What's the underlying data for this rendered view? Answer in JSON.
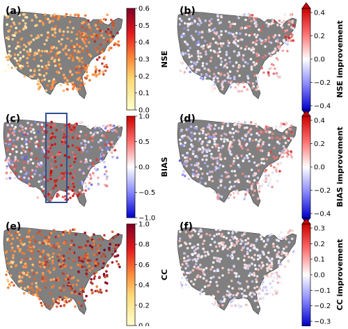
{
  "figure": {
    "panels": [
      {
        "id": "a",
        "label": "(a)",
        "colorbar": {
          "title": "NSE",
          "ticks": [
            "0.6",
            "0.5",
            "0.4",
            "0.3",
            "0.2",
            "0.1",
            "0.0"
          ],
          "scheme": "sequential-yellow-red",
          "extend": false
        }
      },
      {
        "id": "b",
        "label": "(b)",
        "colorbar": {
          "title": "NSE improvement",
          "ticks": [
            "0.4",
            "0.2",
            "0.0",
            "−0.2",
            "−0.4"
          ],
          "scheme": "diverging-blue-red",
          "extend": true
        }
      },
      {
        "id": "c",
        "label": "(c)",
        "colorbar": {
          "title": "BIAS",
          "ticks": [
            "1.0",
            "0.5",
            "0.0",
            "−0.5",
            "−1.0"
          ],
          "scheme": "diverging-blue-red",
          "extend": false
        },
        "highlight_box": true
      },
      {
        "id": "d",
        "label": "(d)",
        "colorbar": {
          "title": "BIAS improvement",
          "ticks": [
            "0.4",
            "0.2",
            "0.0",
            "−0.2",
            "−0.4"
          ],
          "scheme": "diverging-blue-red",
          "extend": true
        }
      },
      {
        "id": "e",
        "label": "(e)",
        "colorbar": {
          "title": "CC",
          "ticks": [
            "1.0",
            "0.8",
            "0.6",
            "0.4",
            "0.2",
            "0.0"
          ],
          "scheme": "sequential-yellow-red",
          "extend": false
        }
      },
      {
        "id": "f",
        "label": "(f)",
        "colorbar": {
          "title": "CC improvement",
          "ticks": [
            "0.3",
            "0.2",
            "0.1",
            "0.0",
            "−0.1",
            "−0.2",
            "−0.3"
          ],
          "scheme": "diverging-blue-red",
          "extend": true
        }
      }
    ],
    "colors": {
      "land": "#808080",
      "highlight_box": "#2f4f8f",
      "seq_low": "#ffffcc",
      "seq_mid": "#fd8d3c",
      "seq_high": "#800026",
      "div_neg": "#0000cc",
      "div_zero": "#ffffff",
      "div_pos": "#cc0000"
    }
  }
}
